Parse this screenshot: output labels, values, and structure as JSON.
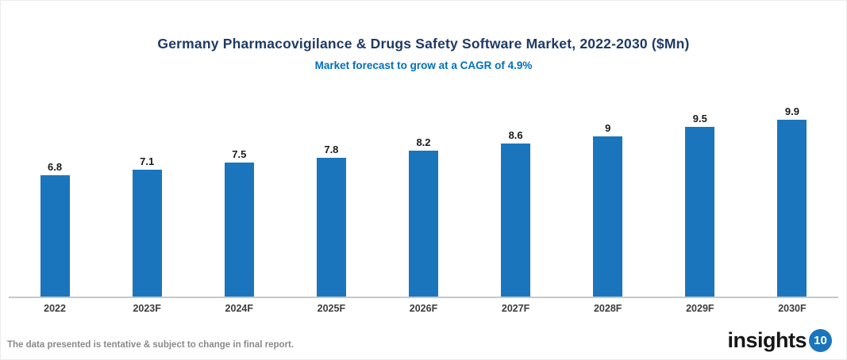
{
  "chart_data": {
    "type": "bar",
    "title": "Germany Pharmacovigilance & Drugs Safety Software Market, 2022-2030 ($Mn)",
    "subtitle": "Market forecast to grow at a CAGR of 4.9%",
    "categories": [
      "2022",
      "2023F",
      "2024F",
      "2025F",
      "2026F",
      "2027F",
      "2028F",
      "2029F",
      "2030F"
    ],
    "values": [
      6.8,
      7.1,
      7.5,
      7.8,
      8.2,
      8.6,
      9,
      9.5,
      9.9
    ],
    "value_labels": [
      "6.8",
      "7.1",
      "7.5",
      "7.8",
      "8.2",
      "8.6",
      "9",
      "9.5",
      "9.9"
    ],
    "xlabel": "",
    "ylabel": "",
    "ylim": [
      0,
      11
    ],
    "grid": false,
    "legend": "none",
    "bar_color": "#1b75bc",
    "title_color": "#203a66",
    "subtitle_color": "#0070c0",
    "axis_line_color": "#c8c8c8"
  },
  "footer": {
    "disclaimer": "The data presented is tentative & subject to change in final report.",
    "logo_text": "insights",
    "logo_number": "10"
  }
}
